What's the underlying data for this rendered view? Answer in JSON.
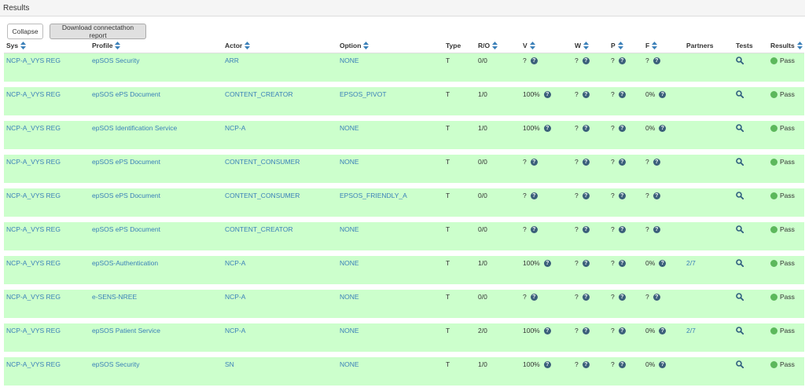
{
  "panel": {
    "title": "Results"
  },
  "toolbar": {
    "collapse_label": "Collapse",
    "download_label": "Download connectathon report"
  },
  "columns": [
    {
      "label": "Sys",
      "sortable": true
    },
    {
      "label": "Profile",
      "sortable": true
    },
    {
      "label": "Actor",
      "sortable": true
    },
    {
      "label": "Option",
      "sortable": true
    },
    {
      "label": "Type",
      "sortable": false
    },
    {
      "label": "R/O",
      "sortable": true
    },
    {
      "label": "V",
      "sortable": true
    },
    {
      "label": "W",
      "sortable": true
    },
    {
      "label": "P",
      "sortable": true
    },
    {
      "label": "F",
      "sortable": true
    },
    {
      "label": "Partners",
      "sortable": false
    },
    {
      "label": "Tests",
      "sortable": false
    },
    {
      "label": "Results",
      "sortable": true
    }
  ],
  "rows": [
    {
      "sys": "NCP-A_VYS REG",
      "profile": "epSOS Security",
      "actor": "ARR",
      "option": "NONE",
      "type": "T",
      "ro": "0/0",
      "v": "?",
      "w": "?",
      "p": "?",
      "f": "?",
      "partners": "",
      "result": "Pass"
    },
    {
      "sys": "NCP-A_VYS REG",
      "profile": "epSOS ePS Document",
      "actor": "CONTENT_CREATOR",
      "option": "EPSOS_PIVOT",
      "type": "T",
      "ro": "1/0",
      "v": "100%",
      "w": "?",
      "p": "?",
      "f": "0%",
      "partners": "",
      "result": "Pass"
    },
    {
      "sys": "NCP-A_VYS REG",
      "profile": "epSOS Identification Service",
      "actor": "NCP-A",
      "option": "NONE",
      "type": "T",
      "ro": "1/0",
      "v": "100%",
      "w": "?",
      "p": "?",
      "f": "0%",
      "partners": "",
      "result": "Pass"
    },
    {
      "sys": "NCP-A_VYS REG",
      "profile": "epSOS ePS Document",
      "actor": "CONTENT_CONSUMER",
      "option": "NONE",
      "type": "T",
      "ro": "0/0",
      "v": "?",
      "w": "?",
      "p": "?",
      "f": "?",
      "partners": "",
      "result": "Pass"
    },
    {
      "sys": "NCP-A_VYS REG",
      "profile": "epSOS ePS Document",
      "actor": "CONTENT_CONSUMER",
      "option": "EPSOS_FRIENDLY_A",
      "type": "T",
      "ro": "0/0",
      "v": "?",
      "w": "?",
      "p": "?",
      "f": "?",
      "partners": "",
      "result": "Pass"
    },
    {
      "sys": "NCP-A_VYS REG",
      "profile": "epSOS ePS Document",
      "actor": "CONTENT_CREATOR",
      "option": "NONE",
      "type": "T",
      "ro": "0/0",
      "v": "?",
      "w": "?",
      "p": "?",
      "f": "?",
      "partners": "",
      "result": "Pass"
    },
    {
      "sys": "NCP-A_VYS REG",
      "profile": "epSOS-Authentication",
      "actor": "NCP-A",
      "option": "NONE",
      "type": "T",
      "ro": "1/0",
      "v": "100%",
      "w": "?",
      "p": "?",
      "f": "0%",
      "partners": "2/7",
      "result": "Pass"
    },
    {
      "sys": "NCP-A_VYS REG",
      "profile": "e-SENS-NREE",
      "actor": "NCP-A",
      "option": "NONE",
      "type": "T",
      "ro": "0/0",
      "v": "?",
      "w": "?",
      "p": "?",
      "f": "?",
      "partners": "",
      "result": "Pass"
    },
    {
      "sys": "NCP-A_VYS REG",
      "profile": "epSOS Patient Service",
      "actor": "NCP-A",
      "option": "NONE",
      "type": "T",
      "ro": "2/0",
      "v": "100%",
      "w": "?",
      "p": "?",
      "f": "0%",
      "partners": "2/7",
      "result": "Pass"
    },
    {
      "sys": "NCP-A_VYS REG",
      "profile": "epSOS Security",
      "actor": "SN",
      "option": "NONE",
      "type": "T",
      "ro": "1/0",
      "v": "100%",
      "w": "?",
      "p": "?",
      "f": "0%",
      "partners": "",
      "result": "Pass"
    }
  ],
  "help_glyph": "?",
  "colors": {
    "row_pass": "#ccffcc",
    "link": "#3a7fb8",
    "pass_dot": "#5cb85c"
  }
}
